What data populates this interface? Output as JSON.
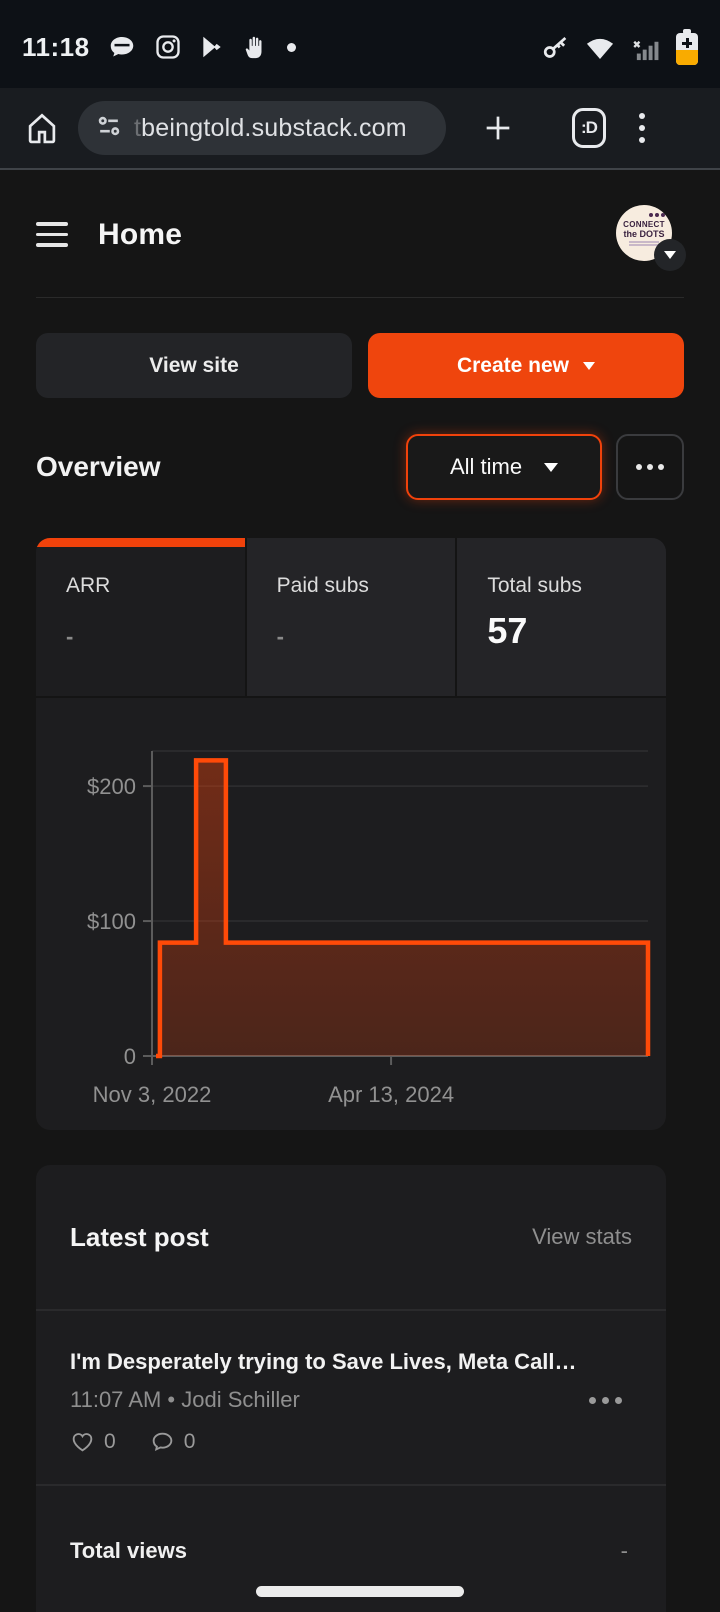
{
  "status_bar": {
    "time": "11:18",
    "left_icons": [
      "chat-bubble",
      "instagram",
      "google-play",
      "hand",
      "notification-dot"
    ],
    "right_icons": [
      "vpn-key",
      "wifi",
      "cell-signal-off",
      "battery-saver"
    ]
  },
  "browser": {
    "url_faded_prefix": "t",
    "url_visible": "beingtold.substack.com",
    "tab_count_label": ":D"
  },
  "header": {
    "title": "Home",
    "avatar_line1": "CONNECT",
    "avatar_line2": "the DOTS"
  },
  "actions": {
    "view_site_label": "View site",
    "create_new_label": "Create new"
  },
  "overview": {
    "title": "Overview",
    "time_filter_value": "All time"
  },
  "stats_tabs": {
    "0": {
      "label": "ARR",
      "value": "-",
      "active": true
    },
    "1": {
      "label": "Paid subs",
      "value": "-",
      "active": false
    },
    "2": {
      "label": "Total subs",
      "value": "57",
      "active": false
    }
  },
  "chart_data": {
    "type": "area",
    "title": "ARR over time",
    "estimated_from_gridlines": true,
    "y_axis_max": 226,
    "y_gridlines": [
      {
        "label": "$200",
        "value": 200
      },
      {
        "label": "$100",
        "value": 100
      },
      {
        "label": "0",
        "value": 0
      }
    ],
    "x_ticks": [
      {
        "label": "Nov 3, 2022",
        "frac": 0.0
      },
      {
        "label": "Apr 13, 2024",
        "frac": 0.482
      }
    ],
    "series": [
      {
        "name": "ARR",
        "color": "#ff4a08",
        "points": [
          {
            "frac": 0.008,
            "value": 0
          },
          {
            "frac": 0.016,
            "value": 0
          },
          {
            "frac": 0.016,
            "value": 84
          },
          {
            "frac": 0.089,
            "value": 84
          },
          {
            "frac": 0.089,
            "value": 219
          },
          {
            "frac": 0.149,
            "value": 219
          },
          {
            "frac": 0.149,
            "value": 84
          },
          {
            "frac": 1.0,
            "value": 84
          },
          {
            "frac": 1.0,
            "value": 0
          }
        ]
      }
    ]
  },
  "latest_post": {
    "section_title": "Latest post",
    "view_stats_label": "View stats",
    "post_title": "I'm Desperately trying to Save Lives, Meta Call…",
    "post_meta": "11:07 AM • Jodi Schiller",
    "likes": "0",
    "comments": "0"
  },
  "totals": {
    "label": "Total views",
    "value": "-"
  },
  "colors": {
    "accent_orange": "#f1420b",
    "chart_line": "#ff4a08",
    "battery_saver_amber": "#f9ab00",
    "card_bg": "#1d1d1f",
    "page_bg": "#151515",
    "muted_text": "#8f8f8f"
  }
}
